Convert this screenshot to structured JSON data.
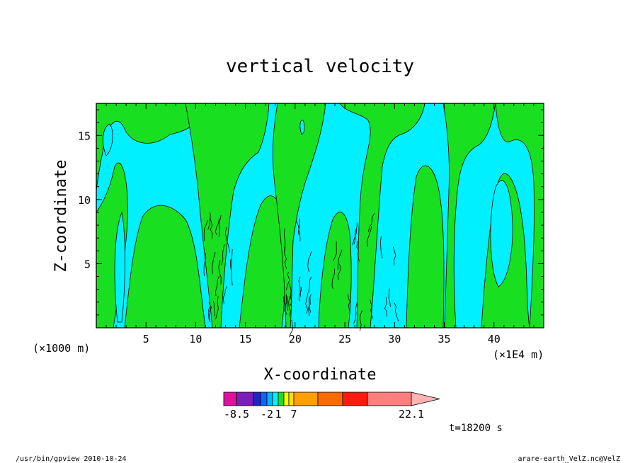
{
  "chart_data": {
    "type": "heatmap",
    "title": "vertical velocity",
    "xlabel": "X-coordinate",
    "ylabel": "Z-coordinate",
    "x_scale_label": "(×1E4 m)",
    "y_scale_label": "(×1000 m)",
    "xlim": [
      0,
      45
    ],
    "ylim": [
      0,
      17.5
    ],
    "x_ticks": [
      "5",
      "10",
      "15",
      "20",
      "25",
      "30",
      "35",
      "40"
    ],
    "x_tick_values": [
      5,
      10,
      15,
      20,
      25,
      30,
      35,
      40
    ],
    "y_ticks": [
      "5",
      "10",
      "15"
    ],
    "y_tick_values": [
      5,
      10,
      15
    ],
    "colorbar": {
      "colors": [
        "#e0119c",
        "#7b1fb8",
        "#1f26c2",
        "#1262ff",
        "#00b4ff",
        "#00f0ff",
        "#18e020",
        "#ffff00",
        "#ffe000",
        "#ffa000",
        "#ff6a00",
        "#ff1a10",
        "#ff7f7f",
        "#ffb3b3"
      ],
      "labels": [
        "-8.5",
        "-2",
        "1",
        "7",
        "22.1"
      ],
      "label_after_box": [
        0,
        3,
        5,
        8,
        12
      ]
    },
    "regions": {
      "background_color": "#00f0ff",
      "positive_color": "#18e020",
      "contour_color": "#000000",
      "bands_green": [
        {
          "x": 0.6,
          "y0": 0,
          "y1": 9.0
        },
        {
          "x": 2.4,
          "y0": 0,
          "y1": 13.3
        },
        {
          "x": 6.6,
          "y0": 0,
          "y1": 9.5
        },
        {
          "x": 10.4,
          "y0": 0,
          "y1": 10.5
        },
        {
          "x": 14.8,
          "y0": 0,
          "y1": 12.8
        },
        {
          "x": 19.7,
          "y0": 0,
          "y1": 11.0
        },
        {
          "x": 22.6,
          "y0": 0,
          "y1": 9.0
        },
        {
          "x": 26.8,
          "y0": 0,
          "y1": 16.2
        },
        {
          "x": 31.2,
          "y0": 0,
          "y1": 15.0
        },
        {
          "x": 36.4,
          "y0": 0,
          "y1": 17.5
        },
        {
          "x": 41.4,
          "y0": 0,
          "y1": 16.5
        }
      ]
    }
  },
  "timestamp": "t=18200 s",
  "footer_left": "/usr/bin/gpview   2010-10-24",
  "footer_right": "arare-earth_VelZ.nc@VelZ"
}
